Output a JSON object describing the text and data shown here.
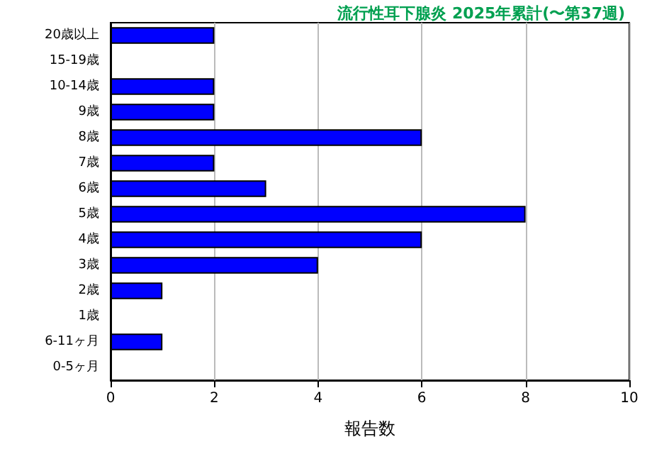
{
  "chart_data": {
    "type": "bar",
    "orientation": "horizontal",
    "title": "流行性耳下腺炎 2025年累計(〜第37週)",
    "xlabel": "報告数",
    "categories": [
      "20歳以上",
      "15-19歳",
      "10-14歳",
      "9歳",
      "8歳",
      "7歳",
      "6歳",
      "5歳",
      "4歳",
      "3歳",
      "2歳",
      "1歳",
      "6-11ヶ月",
      "0-5ヶ月"
    ],
    "values": [
      2,
      0,
      2,
      2,
      6,
      2,
      3,
      8,
      6,
      4,
      1,
      0,
      1,
      0
    ],
    "color": "#0000ff",
    "xlim": [
      0,
      10
    ],
    "xticks": [
      0,
      2,
      4,
      6,
      8,
      10
    ],
    "grid": "x"
  }
}
